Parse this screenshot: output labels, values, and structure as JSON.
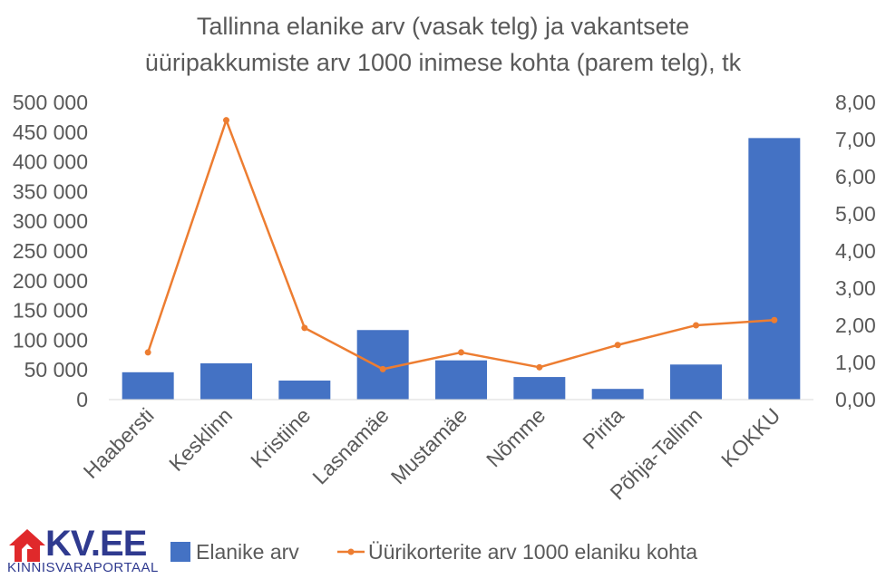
{
  "title_line1": "Tallinna elanike arv (vasak telg) ja vakantsete",
  "title_line2": "üüripakkumiste arv 1000 inimese kohta (parem telg), tk",
  "logo": {
    "brand": "KV.EE",
    "sub": "KINNISVARAPORTAAL"
  },
  "colors": {
    "bar": "#4472C4",
    "line": "#ED7D31",
    "text": "#595959",
    "logo": "#2f3a8f",
    "logo_red": "#e0292b"
  },
  "chart_data": {
    "type": "bar",
    "categories": [
      "Haabersti",
      "Kesklinn",
      "Kristiine",
      "Lasnamäe",
      "Mustamäe",
      "Nõmme",
      "Pirita",
      "Põhja-Tallinn",
      "KOKKU"
    ],
    "series": [
      {
        "name": "Elanike arv",
        "type": "bar",
        "axis": "left",
        "values": [
          46000,
          61000,
          32000,
          117000,
          66000,
          38000,
          18000,
          59000,
          440000
        ]
      },
      {
        "name": "Üürikorterite arv 1000 elaniku kohta",
        "type": "line",
        "axis": "right",
        "values": [
          1.27,
          7.52,
          1.93,
          0.82,
          1.27,
          0.87,
          1.47,
          2.0,
          2.14
        ]
      }
    ],
    "y_left": {
      "min": 0,
      "max": 500000,
      "ticks": [
        "0",
        "50 000",
        "100 000",
        "150 000",
        "200 000",
        "250 000",
        "300 000",
        "350 000",
        "400 000",
        "450 000",
        "500 000"
      ]
    },
    "y_right": {
      "min": 0,
      "max": 8,
      "ticks": [
        "0,00",
        "1,00",
        "2,00",
        "3,00",
        "4,00",
        "5,00",
        "6,00",
        "7,00",
        "8,00"
      ]
    },
    "grid": false,
    "legend_position": "bottom"
  }
}
